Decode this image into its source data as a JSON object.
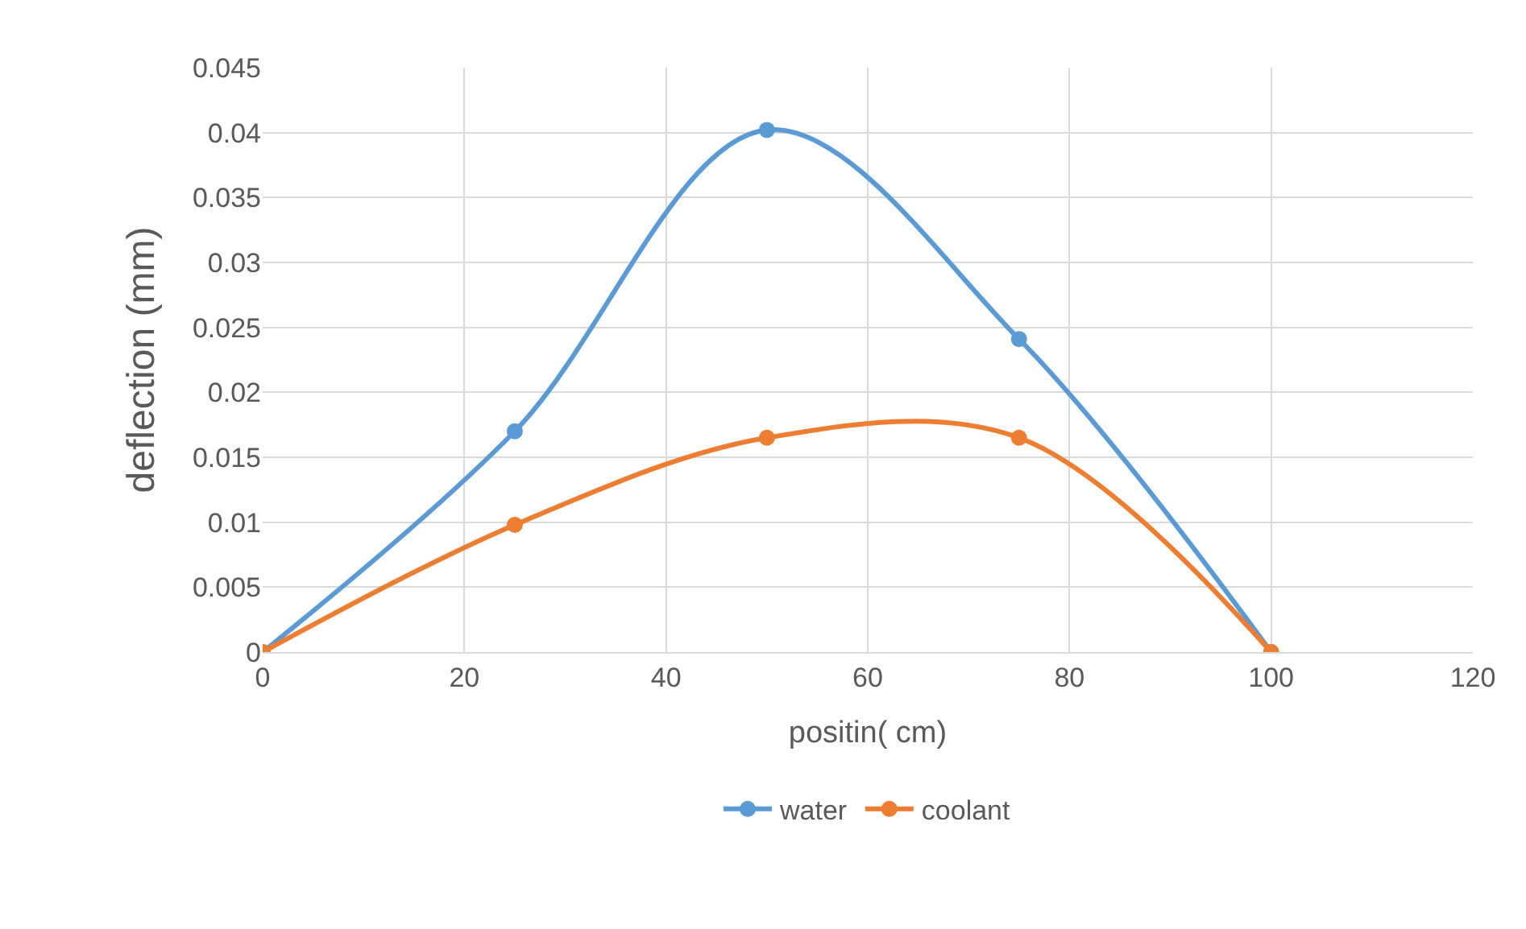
{
  "chart_data": {
    "type": "line",
    "xlabel": "positin( cm)",
    "ylabel": "deflection (mm)",
    "x": [
      0,
      25,
      50,
      75,
      100
    ],
    "series": [
      {
        "name": "water",
        "color": "#5b9bd5",
        "values": [
          0,
          0.017,
          0.0402,
          0.0241,
          0
        ]
      },
      {
        "name": "coolant",
        "color": "#ed7d31",
        "values": [
          0,
          0.0098,
          0.0165,
          0.0165,
          0
        ]
      }
    ],
    "xlim": [
      0,
      120
    ],
    "xticks": [
      0,
      20,
      40,
      60,
      80,
      100,
      120
    ],
    "ylim": [
      0,
      0.045
    ],
    "yticks": [
      0,
      0.005,
      0.01,
      0.015,
      0.02,
      0.025,
      0.03,
      0.035,
      0.04,
      0.045
    ],
    "grid": true,
    "legend": "bottom",
    "marker": "circle",
    "line_style": "solid"
  }
}
